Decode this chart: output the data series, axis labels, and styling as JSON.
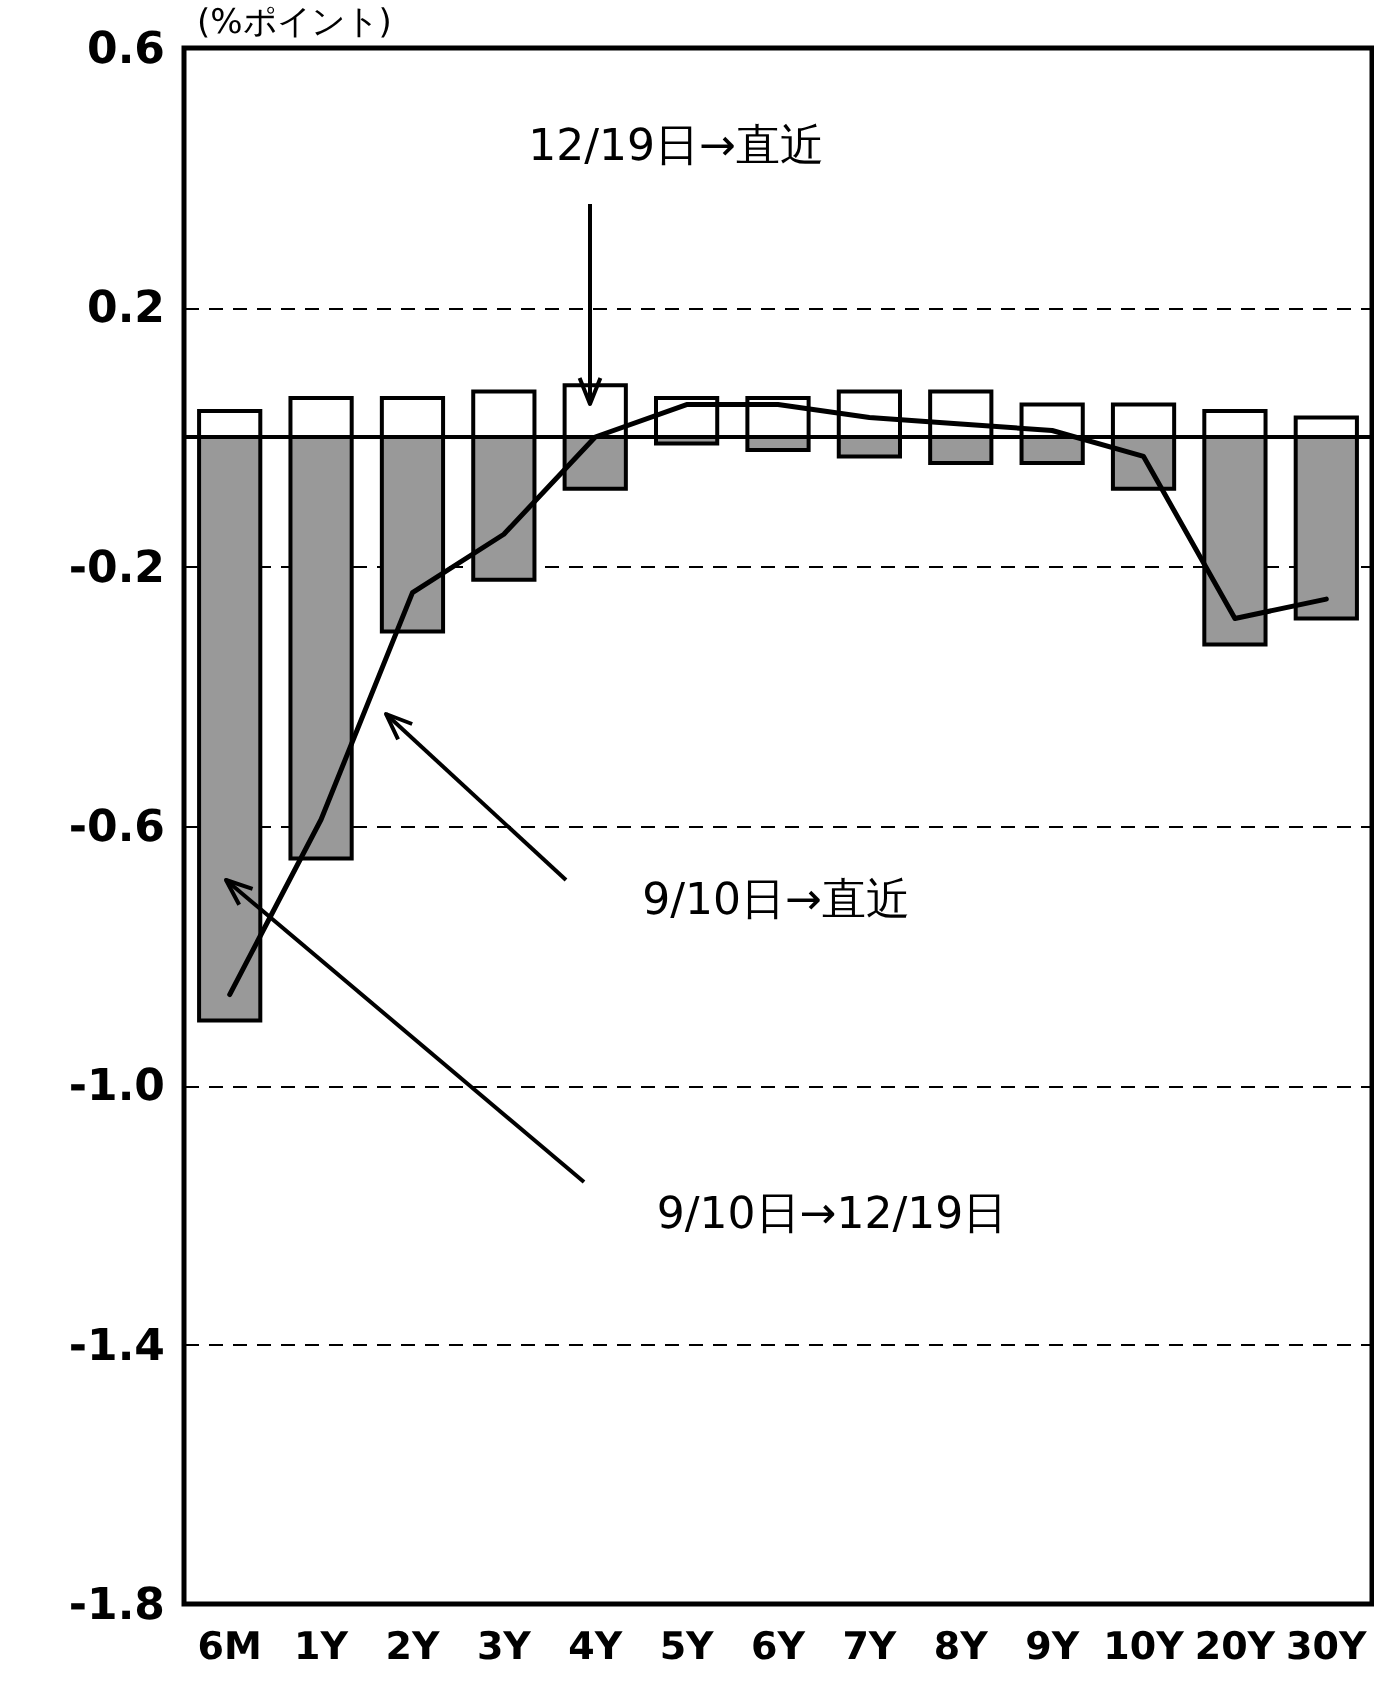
{
  "chart_data": {
    "type": "bar",
    "ylabel": "(%ポイント)",
    "categories": [
      "6M",
      "1Y",
      "2Y",
      "3Y",
      "4Y",
      "5Y",
      "6Y",
      "7Y",
      "8Y",
      "9Y",
      "10Y",
      "20Y",
      "30Y"
    ],
    "series": [
      {
        "type": "bar",
        "color": "#999999",
        "values": [
          -0.9,
          -0.65,
          -0.3,
          -0.22,
          -0.08,
          -0.01,
          -0.02,
          -0.03,
          -0.04,
          -0.04,
          -0.08,
          -0.32,
          -0.28
        ]
      },
      {
        "type": "bar",
        "color": "#ffffff",
        "values": [
          0.04,
          0.06,
          0.06,
          0.07,
          0.08,
          0.06,
          0.06,
          0.07,
          0.07,
          0.05,
          0.05,
          0.04,
          0.03
        ]
      },
      {
        "type": "line",
        "color": "#000000",
        "values": [
          -0.86,
          -0.59,
          -0.24,
          -0.15,
          0.0,
          0.05,
          0.05,
          0.03,
          0.02,
          0.01,
          -0.03,
          -0.28,
          -0.25
        ]
      }
    ],
    "stacked": true,
    "ylim": [
      -1.8,
      0.6
    ],
    "yticks": [
      -1.8,
      -1.4,
      {
        "value": -1.0,
        "label": "-1.0"
      },
      -0.6,
      -0.2,
      0.2,
      0.6
    ],
    "grid": "y",
    "ref_lines": [
      {
        "axis": "y",
        "value": 0
      }
    ],
    "annotations": [
      "12/19日→直近",
      "9/10日→直近",
      "9/10日→12/19日"
    ]
  }
}
